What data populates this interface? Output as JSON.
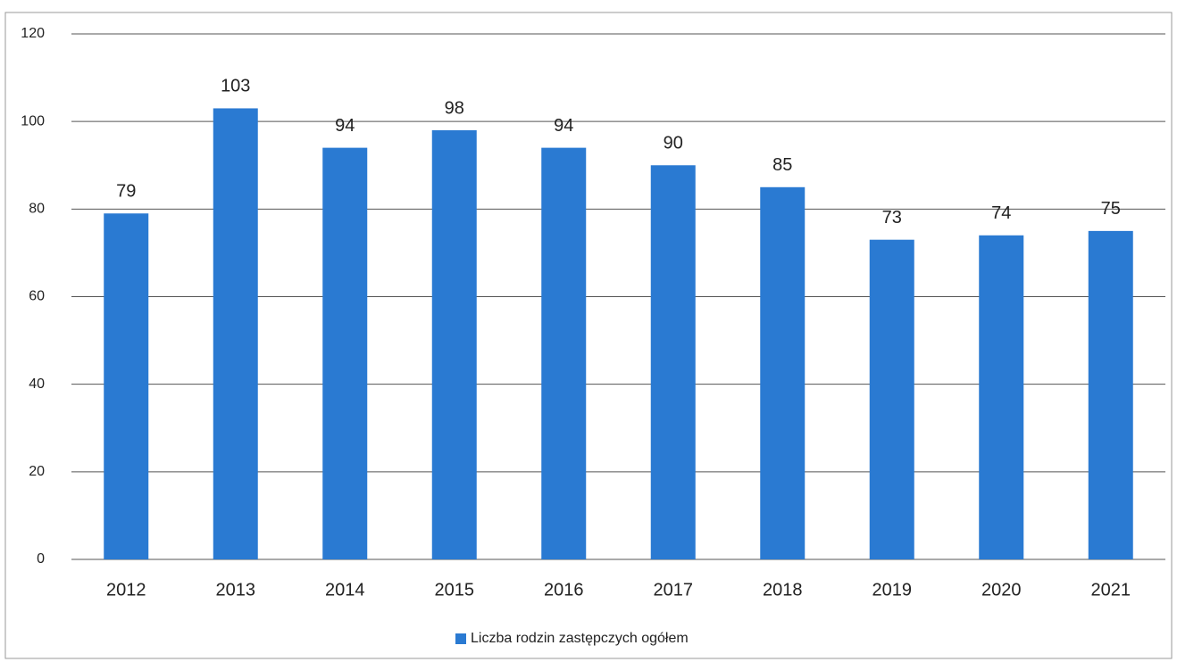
{
  "chart_data": {
    "type": "bar",
    "categories": [
      "2012",
      "2013",
      "2014",
      "2015",
      "2016",
      "2017",
      "2018",
      "2019",
      "2020",
      "2021"
    ],
    "series": [
      {
        "name": "Liczba rodzin zastępczych ogółem",
        "color": "#2a7ad2",
        "values": [
          79,
          103,
          94,
          98,
          94,
          90,
          85,
          73,
          74,
          75
        ]
      }
    ],
    "ylim": [
      0,
      120
    ],
    "yticks": [
      0,
      20,
      40,
      60,
      80,
      100,
      120
    ],
    "grid": true,
    "data_labels": true,
    "legend": "bottom"
  }
}
